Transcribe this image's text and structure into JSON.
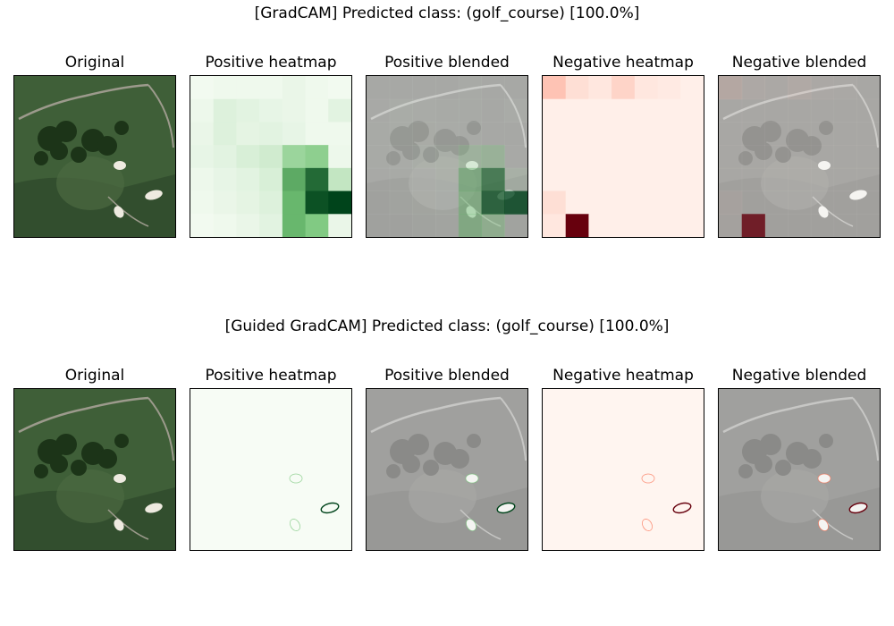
{
  "figure": {
    "rows": [
      {
        "method": "gradcam",
        "title": "[GradCAM] Predicted class: (golf_course) [100.0%]",
        "panels": [
          {
            "label": "Original",
            "kind": "original"
          },
          {
            "label": "Positive heatmap",
            "kind": "positive-heatmap"
          },
          {
            "label": "Positive blended",
            "kind": "positive-blended"
          },
          {
            "label": "Negative heatmap",
            "kind": "negative-heatmap"
          },
          {
            "label": "Negative blended",
            "kind": "negative-blended"
          }
        ]
      },
      {
        "method": "guided-gradcam",
        "title": "[Guided GradCAM] Predicted class: (golf_course) [100.0%]",
        "panels": [
          {
            "label": "Original",
            "kind": "original"
          },
          {
            "label": "Positive heatmap",
            "kind": "positive-heatmap"
          },
          {
            "label": "Positive blended",
            "kind": "positive-blended"
          },
          {
            "label": "Negative heatmap",
            "kind": "negative-heatmap"
          },
          {
            "label": "Negative blended",
            "kind": "negative-blended"
          }
        ]
      }
    ],
    "gradcam_grid": {
      "size": 7,
      "positive": [
        [
          0.02,
          0.03,
          0.03,
          0.03,
          0.05,
          0.03,
          0.02
        ],
        [
          0.04,
          0.1,
          0.08,
          0.06,
          0.05,
          0.03,
          0.08
        ],
        [
          0.05,
          0.1,
          0.07,
          0.08,
          0.06,
          0.03,
          0.03
        ],
        [
          0.06,
          0.08,
          0.12,
          0.15,
          0.35,
          0.4,
          0.04
        ],
        [
          0.04,
          0.06,
          0.08,
          0.12,
          0.6,
          0.85,
          0.2
        ],
        [
          0.03,
          0.05,
          0.07,
          0.1,
          0.55,
          0.95,
          1.0
        ],
        [
          0.02,
          0.03,
          0.05,
          0.08,
          0.55,
          0.45,
          0.05
        ]
      ],
      "negative": [
        [
          0.18,
          0.08,
          0.05,
          0.12,
          0.05,
          0.04,
          0.02
        ],
        [
          0.02,
          0.02,
          0.02,
          0.02,
          0.02,
          0.02,
          0.02
        ],
        [
          0.02,
          0.02,
          0.02,
          0.02,
          0.02,
          0.02,
          0.02
        ],
        [
          0.02,
          0.02,
          0.02,
          0.02,
          0.02,
          0.02,
          0.02
        ],
        [
          0.02,
          0.02,
          0.02,
          0.02,
          0.02,
          0.02,
          0.02
        ],
        [
          0.08,
          0.02,
          0.02,
          0.02,
          0.02,
          0.02,
          0.02
        ],
        [
          0.05,
          1.0,
          0.02,
          0.02,
          0.02,
          0.02,
          0.02
        ]
      ]
    },
    "colors": {
      "positive_low": "#f7fcf5",
      "positive_mid": "#74c476",
      "positive_high": "#00441b",
      "negative_low": "#fff5f0",
      "negative_mid": "#fb6a4a",
      "negative_high": "#67000d",
      "grass_dark": "#2f4a2c",
      "grass_mid": "#3f5f38",
      "tree_dark": "#1c3418",
      "sand": "#eeeae0",
      "path": "#9c9a8c"
    }
  }
}
